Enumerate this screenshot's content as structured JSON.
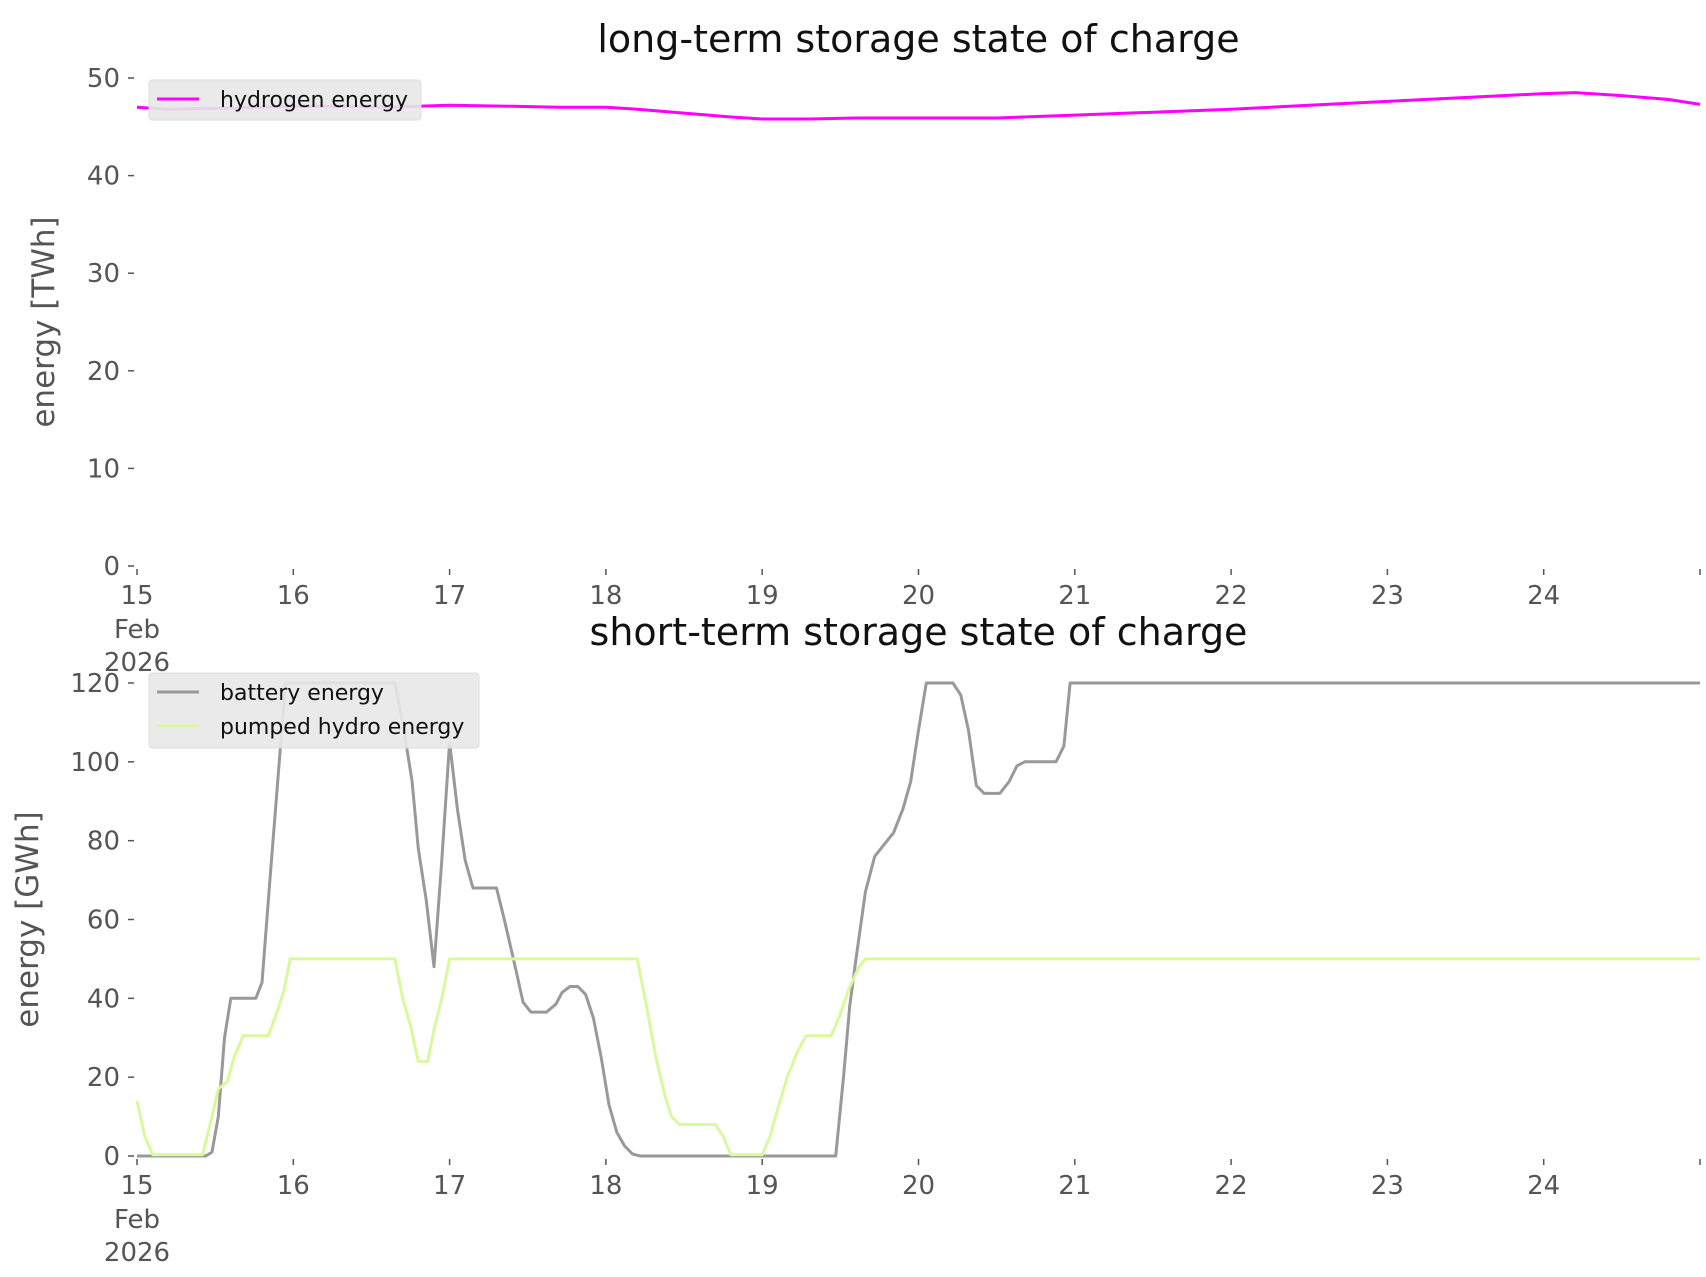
{
  "chart_data": [
    {
      "type": "line",
      "title": "long-term storage state of charge",
      "xlabel": "",
      "ylabel": "energy [TWh]",
      "ylim": [
        0,
        50
      ],
      "yticks": [
        0,
        10,
        20,
        30,
        40,
        50
      ],
      "xlim": [
        0,
        10
      ],
      "xticks": [
        {
          "x": 0,
          "label": "15",
          "sub": [
            "Feb",
            "2026"
          ]
        },
        {
          "x": 1,
          "label": "16"
        },
        {
          "x": 2,
          "label": "17"
        },
        {
          "x": 3,
          "label": "18"
        },
        {
          "x": 4,
          "label": "19"
        },
        {
          "x": 5,
          "label": "20"
        },
        {
          "x": 6,
          "label": "21"
        },
        {
          "x": 7,
          "label": "22"
        },
        {
          "x": 8,
          "label": "23"
        },
        {
          "x": 9,
          "label": "24"
        },
        {
          "x": 10,
          "label": ""
        }
      ],
      "grid": false,
      "legend": "top-left",
      "series": [
        {
          "name": "hydrogen energy",
          "color": "#ff00ff",
          "points": [
            [
              0,
              47.0
            ],
            [
              0.2,
              46.8
            ],
            [
              0.5,
              46.9
            ],
            [
              0.8,
              47.0
            ],
            [
              1.0,
              47.1
            ],
            [
              1.3,
              47.1
            ],
            [
              1.6,
              47.0
            ],
            [
              2.0,
              47.2
            ],
            [
              2.4,
              47.1
            ],
            [
              2.7,
              47.0
            ],
            [
              3.0,
              47.0
            ],
            [
              3.2,
              46.8
            ],
            [
              3.5,
              46.4
            ],
            [
              3.8,
              46.0
            ],
            [
              4.0,
              45.8
            ],
            [
              4.3,
              45.8
            ],
            [
              4.6,
              45.9
            ],
            [
              5.0,
              45.9
            ],
            [
              5.5,
              45.9
            ],
            [
              6.0,
              46.2
            ],
            [
              6.5,
              46.5
            ],
            [
              7.0,
              46.8
            ],
            [
              7.5,
              47.2
            ],
            [
              8.0,
              47.6
            ],
            [
              8.5,
              48.0
            ],
            [
              9.0,
              48.4
            ],
            [
              9.2,
              48.5
            ],
            [
              9.5,
              48.2
            ],
            [
              9.8,
              47.8
            ],
            [
              10.0,
              47.3
            ]
          ]
        }
      ]
    },
    {
      "type": "line",
      "title": "short-term storage state of charge",
      "xlabel": "",
      "ylabel": "energy [GWh]",
      "ylim": [
        0,
        120
      ],
      "yticks": [
        0,
        20,
        40,
        60,
        80,
        100,
        120
      ],
      "xlim": [
        0,
        10
      ],
      "xticks": [
        {
          "x": 0,
          "label": "15",
          "sub": [
            "Feb",
            "2026"
          ]
        },
        {
          "x": 1,
          "label": "16"
        },
        {
          "x": 2,
          "label": "17"
        },
        {
          "x": 3,
          "label": "18"
        },
        {
          "x": 4,
          "label": "19"
        },
        {
          "x": 5,
          "label": "20"
        },
        {
          "x": 6,
          "label": "21"
        },
        {
          "x": 7,
          "label": "22"
        },
        {
          "x": 8,
          "label": "23"
        },
        {
          "x": 9,
          "label": "24"
        },
        {
          "x": 10,
          "label": ""
        }
      ],
      "grid": false,
      "legend": "top-left",
      "series": [
        {
          "name": "battery energy",
          "color": "#999999",
          "points": [
            [
              0,
              0
            ],
            [
              0.44,
              0
            ],
            [
              0.48,
              1
            ],
            [
              0.52,
              10
            ],
            [
              0.56,
              30
            ],
            [
              0.6,
              40
            ],
            [
              0.76,
              40
            ],
            [
              0.8,
              44
            ],
            [
              0.85,
              70
            ],
            [
              0.9,
              95
            ],
            [
              0.95,
              120
            ],
            [
              1.65,
              120
            ],
            [
              1.7,
              110
            ],
            [
              1.76,
              95
            ],
            [
              1.8,
              78
            ],
            [
              1.85,
              65
            ],
            [
              1.9,
              48
            ],
            [
              1.95,
              75
            ],
            [
              2.0,
              105
            ],
            [
              2.05,
              88
            ],
            [
              2.1,
              75
            ],
            [
              2.15,
              68
            ],
            [
              2.3,
              68
            ],
            [
              2.35,
              60
            ],
            [
              2.42,
              48
            ],
            [
              2.47,
              39
            ],
            [
              2.52,
              36.5
            ],
            [
              2.62,
              36.5
            ],
            [
              2.68,
              38.5
            ],
            [
              2.72,
              41.5
            ],
            [
              2.77,
              43
            ],
            [
              2.82,
              43
            ],
            [
              2.87,
              41
            ],
            [
              2.92,
              35
            ],
            [
              2.97,
              25
            ],
            [
              3.02,
              13
            ],
            [
              3.07,
              6
            ],
            [
              3.12,
              2.5
            ],
            [
              3.17,
              0.5
            ],
            [
              3.22,
              0
            ],
            [
              4.47,
              0
            ],
            [
              4.52,
              20
            ],
            [
              4.56,
              38
            ],
            [
              4.6,
              50
            ],
            [
              4.66,
              67
            ],
            [
              4.72,
              76
            ],
            [
              4.78,
              79
            ],
            [
              4.84,
              82
            ],
            [
              4.9,
              88
            ],
            [
              4.95,
              95
            ],
            [
              5.0,
              108
            ],
            [
              5.05,
              120
            ],
            [
              5.22,
              120
            ],
            [
              5.27,
              117
            ],
            [
              5.32,
              108
            ],
            [
              5.37,
              94
            ],
            [
              5.42,
              92
            ],
            [
              5.52,
              92
            ],
            [
              5.58,
              95
            ],
            [
              5.63,
              99
            ],
            [
              5.68,
              100
            ],
            [
              5.88,
              100
            ],
            [
              5.93,
              104
            ],
            [
              5.97,
              120
            ],
            [
              10.0,
              120
            ]
          ]
        },
        {
          "name": "pumped hydro energy",
          "color": "#d9f99d",
          "points": [
            [
              0,
              14
            ],
            [
              0.05,
              5
            ],
            [
              0.1,
              0.3
            ],
            [
              0.42,
              0.3
            ],
            [
              0.48,
              10
            ],
            [
              0.52,
              17
            ],
            [
              0.58,
              19
            ],
            [
              0.62,
              25
            ],
            [
              0.68,
              30.5
            ],
            [
              0.84,
              30.5
            ],
            [
              0.9,
              37
            ],
            [
              0.94,
              42
            ],
            [
              0.98,
              50
            ],
            [
              1.65,
              50
            ],
            [
              1.7,
              40
            ],
            [
              1.75,
              33
            ],
            [
              1.8,
              24
            ],
            [
              1.86,
              24
            ],
            [
              1.9,
              32
            ],
            [
              1.95,
              40
            ],
            [
              2.0,
              50
            ],
            [
              3.2,
              50
            ],
            [
              3.26,
              38
            ],
            [
              3.32,
              25
            ],
            [
              3.38,
              15
            ],
            [
              3.42,
              10
            ],
            [
              3.47,
              8
            ],
            [
              3.6,
              8
            ],
            [
              3.66,
              8
            ],
            [
              3.7,
              8
            ],
            [
              3.75,
              5
            ],
            [
              3.8,
              0.3
            ],
            [
              4.0,
              0.3
            ],
            [
              4.05,
              5
            ],
            [
              4.1,
              12
            ],
            [
              4.16,
              20
            ],
            [
              4.22,
              26
            ],
            [
              4.28,
              30.5
            ],
            [
              4.44,
              30.5
            ],
            [
              4.5,
              36
            ],
            [
              4.55,
              42
            ],
            [
              4.62,
              48
            ],
            [
              4.66,
              50
            ],
            [
              10.0,
              50
            ]
          ]
        }
      ]
    }
  ]
}
